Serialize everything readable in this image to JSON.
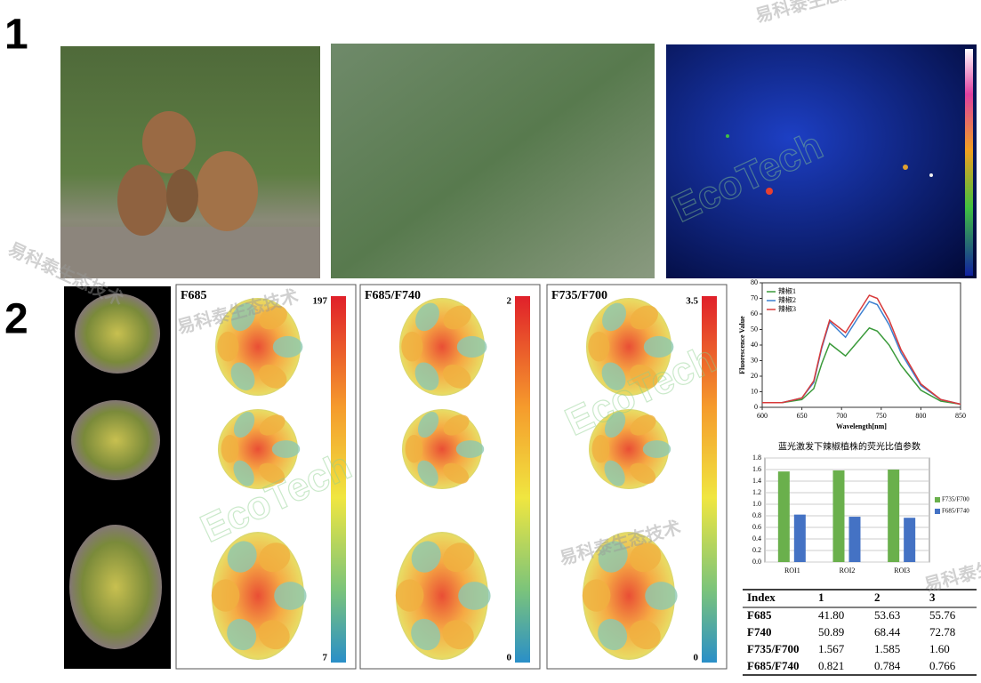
{
  "panel_labels": [
    "1",
    "2"
  ],
  "watermarks": [
    "易科泰生态技术",
    "EcoTech"
  ],
  "heatmaps": [
    {
      "title": "F685",
      "max": 197,
      "min": 7
    },
    {
      "title": "F685/F740",
      "max": 2,
      "min": 0
    },
    {
      "title": "F735/F700",
      "max": 3.5,
      "min": 0
    }
  ],
  "chart_data": [
    {
      "type": "line",
      "xlabel": "Wavelength[nm]",
      "ylabel": "Fluorescence Value",
      "x": [
        600,
        625,
        650,
        665,
        675,
        685,
        695,
        705,
        720,
        735,
        745,
        760,
        775,
        800,
        825,
        850
      ],
      "series": [
        {
          "name": "辣椒1",
          "color": "#3a9a3a",
          "values": [
            3,
            3,
            5,
            12,
            28,
            41,
            37,
            33,
            42,
            51,
            49,
            40,
            27,
            11,
            4,
            2
          ]
        },
        {
          "name": "辣椒2",
          "color": "#3b7fd0",
          "values": [
            3,
            3,
            6,
            16,
            38,
            55,
            50,
            45,
            57,
            68,
            66,
            53,
            35,
            14,
            5,
            2
          ]
        },
        {
          "name": "辣椒3",
          "color": "#d83a3a",
          "values": [
            3,
            3,
            6,
            17,
            39,
            56,
            52,
            48,
            60,
            72,
            70,
            56,
            37,
            15,
            5,
            2
          ]
        }
      ],
      "xlim": [
        600,
        850
      ],
      "ylim": [
        0,
        80
      ],
      "xticks": [
        600,
        650,
        700,
        750,
        800,
        850
      ],
      "yticks": [
        0,
        10,
        20,
        30,
        40,
        50,
        60,
        70,
        80
      ],
      "legend": "upper-left"
    },
    {
      "type": "bar",
      "title": "蓝光激发下辣椒植株的荧光比值参数",
      "categories": [
        "ROI1",
        "ROI2",
        "ROI3"
      ],
      "series": [
        {
          "name": "F735/F700",
          "color": "#6ab04c",
          "values": [
            1.567,
            1.585,
            1.6
          ]
        },
        {
          "name": "F685/F740",
          "color": "#4472c4",
          "values": [
            0.821,
            0.784,
            0.766
          ]
        }
      ],
      "ylim": [
        0,
        1.8
      ],
      "yticks": [
        {
          "value": 0,
          "label": "0.0"
        },
        0.2,
        0.4,
        0.6,
        0.8,
        {
          "value": 1,
          "label": "1.0"
        },
        1.2,
        1.4,
        1.6,
        1.8
      ],
      "grid": true,
      "legend": "right"
    }
  ],
  "table": {
    "header": [
      "Index",
      "1",
      "2",
      "3"
    ],
    "rows": [
      [
        "F685",
        "41.80",
        "53.63",
        "55.76"
      ],
      [
        "F740",
        "50.89",
        "68.44",
        "72.78"
      ],
      [
        "F735/F700",
        "1.567",
        "1.585",
        "1.60"
      ],
      [
        "F685/F740",
        "0.821",
        "0.784",
        "0.766"
      ]
    ]
  }
}
